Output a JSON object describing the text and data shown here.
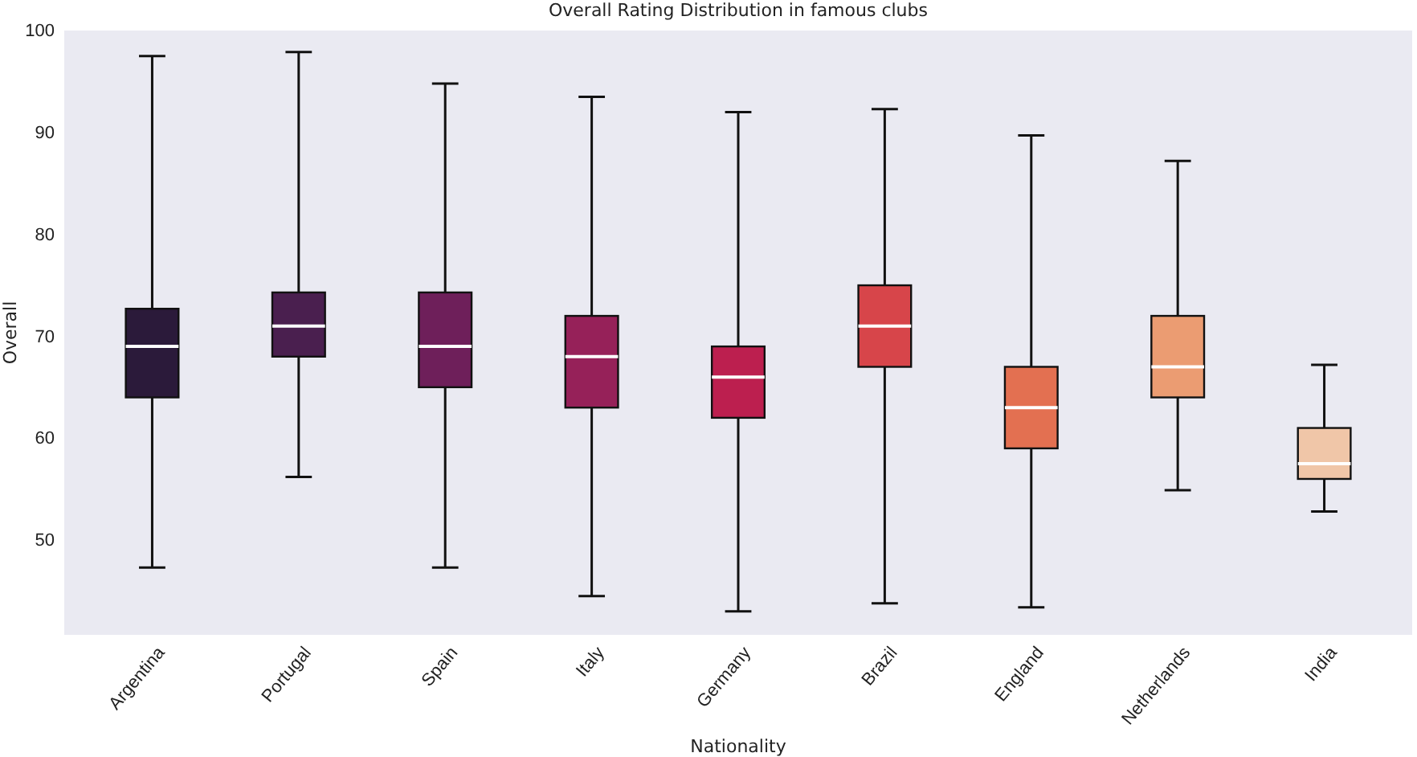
{
  "chart_data": {
    "type": "box",
    "title": "Overall Rating Distribution in famous clubs",
    "xlabel": "Nationality",
    "ylabel": "Overall",
    "categories": [
      "Argentina",
      "Portugal",
      "Spain",
      "Italy",
      "Germany",
      "Brazil",
      "England",
      "Netherlands",
      "India"
    ],
    "colors": [
      "#2b1a3a",
      "#4a1f4f",
      "#6e1f5a",
      "#962159",
      "#bc1f4f",
      "#d7454a",
      "#e37051",
      "#eb9c72",
      "#f0c6a8"
    ],
    "boxes": [
      {
        "low": 47.3,
        "q1": 64,
        "median": 69,
        "q3": 72.7,
        "high": 97.5
      },
      {
        "low": 56.2,
        "q1": 68,
        "median": 71,
        "q3": 74.3,
        "high": 97.9
      },
      {
        "low": 47.3,
        "q1": 65,
        "median": 69,
        "q3": 74.3,
        "high": 94.8
      },
      {
        "low": 44.5,
        "q1": 63,
        "median": 68,
        "q3": 72,
        "high": 93.5
      },
      {
        "low": 43,
        "q1": 62,
        "median": 66,
        "q3": 69,
        "high": 92
      },
      {
        "low": 43.8,
        "q1": 67,
        "median": 71,
        "q3": 75,
        "high": 92.3
      },
      {
        "low": 43.4,
        "q1": 59,
        "median": 63,
        "q3": 67,
        "high": 89.7
      },
      {
        "low": 54.9,
        "q1": 64,
        "median": 67,
        "q3": 72,
        "high": 87.2
      },
      {
        "low": 52.8,
        "q1": 56,
        "median": 57.5,
        "q3": 61,
        "high": 67.2
      }
    ],
    "ylim": [
      40.7,
      100
    ],
    "yticks": [
      50,
      60,
      70,
      80,
      90,
      100
    ],
    "grid": false
  }
}
